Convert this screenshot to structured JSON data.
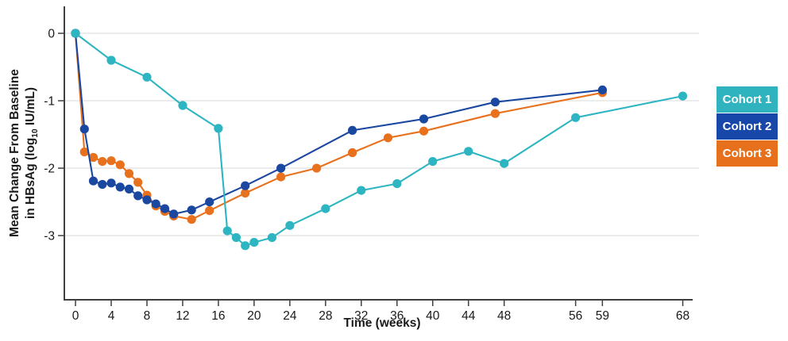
{
  "chart_data": {
    "type": "line",
    "title": "",
    "xlabel": "Time (weeks)",
    "ylabel": "Mean Change From Baseline in HBsAg (log10 IU/mL)",
    "ylabel_line1": "Mean Change From Baseline",
    "ylabel_line2_prefix": "in HBsAg (log",
    "ylabel_line2_sub": "10",
    "ylabel_line2_suffix": " IU/mL)",
    "xticks": [
      0,
      4,
      8,
      12,
      16,
      20,
      24,
      28,
      32,
      36,
      40,
      44,
      48,
      56,
      59,
      68
    ],
    "yticks": [
      0,
      -1,
      -2,
      -3
    ],
    "xlim": [
      -1.16,
      69.82
    ],
    "ylim": [
      -3.94,
      0.4
    ],
    "grid": "horizontal-only",
    "grid_color": "#d8d8d8",
    "axis_color": "#3f3f3f",
    "tick_label_color": "#1a1a1a",
    "legend_position": "right-outside",
    "series": [
      {
        "name": "Cohort 3",
        "color": "#E8711D",
        "points": [
          [
            0,
            0
          ],
          [
            1,
            -1.76
          ],
          [
            2,
            -1.84
          ],
          [
            3,
            -1.9
          ],
          [
            4,
            -1.89
          ],
          [
            5,
            -1.95
          ],
          [
            6,
            -2.08
          ],
          [
            7,
            -2.21
          ],
          [
            8,
            -2.4
          ],
          [
            9,
            -2.56
          ],
          [
            10,
            -2.64
          ],
          [
            11,
            -2.71
          ],
          [
            13,
            -2.76
          ],
          [
            15,
            -2.63
          ],
          [
            19,
            -2.37
          ],
          [
            23,
            -2.13
          ],
          [
            27,
            -2.0
          ],
          [
            31,
            -1.77
          ],
          [
            35,
            -1.55
          ],
          [
            39,
            -1.45
          ],
          [
            47,
            -1.19
          ],
          [
            59,
            -0.88
          ]
        ]
      },
      {
        "name": "Cohort 2",
        "color": "#1A47A0",
        "points": [
          [
            0,
            0
          ],
          [
            1,
            -1.42
          ],
          [
            2,
            -2.19
          ],
          [
            3,
            -2.24
          ],
          [
            4,
            -2.22
          ],
          [
            5,
            -2.28
          ],
          [
            6,
            -2.31
          ],
          [
            7,
            -2.41
          ],
          [
            8,
            -2.47
          ],
          [
            9,
            -2.53
          ],
          [
            10,
            -2.6
          ],
          [
            11,
            -2.68
          ],
          [
            13,
            -2.62
          ],
          [
            15,
            -2.5
          ],
          [
            19,
            -2.26
          ],
          [
            23,
            -2.0
          ],
          [
            31,
            -1.44
          ],
          [
            39,
            -1.27
          ],
          [
            47,
            -1.02
          ],
          [
            59,
            -0.84
          ]
        ]
      },
      {
        "name": "Cohort 1",
        "color": "#2EB5C2",
        "points": [
          [
            0,
            0
          ],
          [
            4,
            -0.4
          ],
          [
            8,
            -0.65
          ],
          [
            12,
            -1.07
          ],
          [
            16,
            -1.41
          ],
          [
            17,
            -2.93
          ],
          [
            18,
            -3.03
          ],
          [
            19,
            -3.15
          ],
          [
            20,
            -3.1
          ],
          [
            22,
            -3.03
          ],
          [
            24,
            -2.85
          ],
          [
            28,
            -2.6
          ],
          [
            32,
            -2.33
          ],
          [
            36,
            -2.23
          ],
          [
            40,
            -1.9
          ],
          [
            44,
            -1.75
          ],
          [
            48,
            -1.93
          ],
          [
            56,
            -1.25
          ],
          [
            68,
            -0.93
          ]
        ]
      }
    ]
  },
  "legend": {
    "items": [
      {
        "label": "Cohort 1",
        "color": "#2FB4BF"
      },
      {
        "label": "Cohort 2",
        "color": "#1647A9"
      },
      {
        "label": "Cohort 3",
        "color": "#E7701D"
      }
    ]
  }
}
